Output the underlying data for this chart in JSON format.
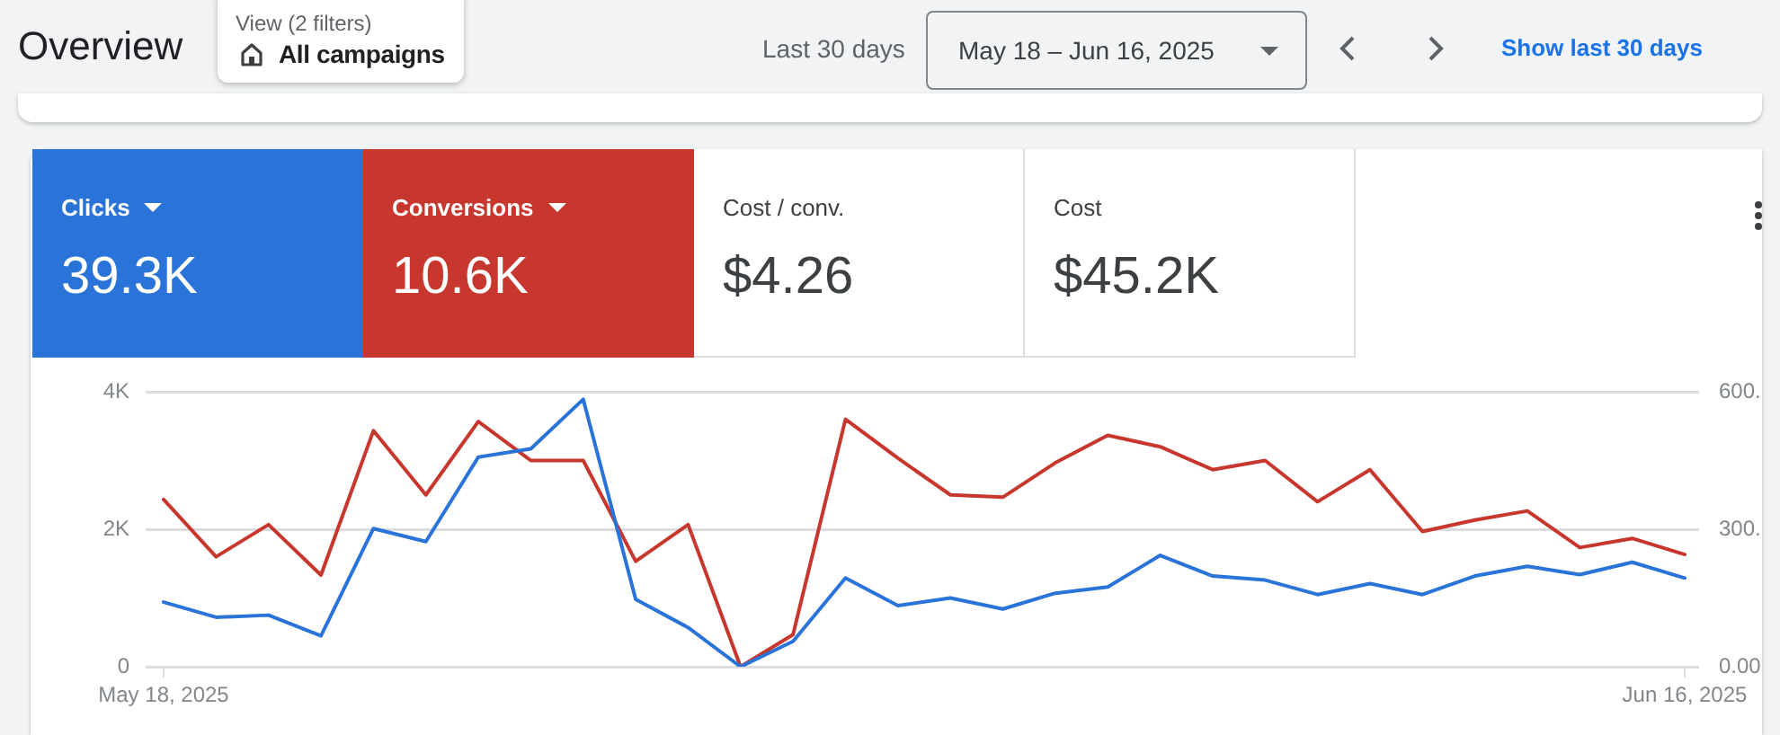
{
  "chart_data": {
    "type": "line",
    "title": "Overview",
    "annotations": [
      "View (2 filters)",
      "All campaigns",
      "Last 30 days",
      "May 18 – Jun 16, 2025",
      "Show last 30 days",
      "Clicks",
      "39.3K",
      "Conversions",
      "10.6K",
      "Cost / conv.",
      "$4.26",
      "Cost",
      "$45.2K"
    ],
    "categories": [
      "May 18, 2025",
      null,
      null,
      null,
      null,
      null,
      null,
      null,
      null,
      null,
      null,
      null,
      null,
      null,
      null,
      null,
      null,
      null,
      null,
      null,
      null,
      null,
      null,
      null,
      null,
      null,
      null,
      null,
      null,
      "Jun 16, 2025"
    ],
    "series": [
      {
        "color": "#2a73d9",
        "values": [
          940,
          720,
          750,
          450,
          2010,
          1820,
          3050,
          3170,
          3890,
          980,
          570,
          0,
          370,
          1290,
          890,
          1000,
          840,
          1070,
          1160,
          1620,
          1320,
          1260,
          1050,
          1210,
          1050,
          1320,
          1460,
          1340,
          1520,
          1290
        ]
      },
      {
        "color": "#c8372d",
        "axis": "y2",
        "values": [
          365,
          240,
          310,
          200,
          515,
          375,
          535,
          450,
          450,
          230,
          310,
          0,
          70,
          540,
          455,
          375,
          370,
          445,
          505,
          480,
          430,
          450,
          360,
          430,
          295,
          320,
          340,
          260,
          280,
          245
        ]
      }
    ],
    "ylim": [
      0,
      4000
    ],
    "yticks": [
      0,
      {
        "value": 2000,
        "label": "2K"
      },
      {
        "value": 4000,
        "label": "4K"
      }
    ],
    "y2lim": [
      0,
      600
    ],
    "y2ticks": [
      {
        "value": 0,
        "label": "0.00"
      },
      {
        "value": 300,
        "label": "300."
      },
      {
        "value": 600,
        "label": "600."
      }
    ],
    "grid": "y",
    "marker": "none",
    "line_style": "solid"
  }
}
